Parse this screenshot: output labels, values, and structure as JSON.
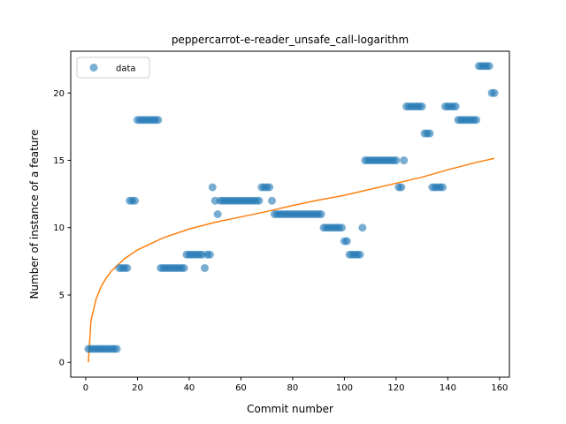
{
  "chart_data": {
    "type": "scatter",
    "title": "peppercarrot-e-reader_unsafe_call-logarithm",
    "xlabel": "Commit number",
    "ylabel": "Number of instance of a feature",
    "xlim": [
      -5.8,
      163.8
    ],
    "ylim": [
      -1.1,
      23.1
    ],
    "xticks": [
      0,
      20,
      40,
      60,
      80,
      100,
      120,
      140,
      160
    ],
    "yticks": [
      0,
      5,
      10,
      15,
      20
    ],
    "grid": false,
    "legend": {
      "placement": "top-left",
      "entries": [
        "data"
      ]
    },
    "colors": {
      "data": "#1f77b4",
      "fit": "#ff7f0e"
    },
    "series": [
      {
        "name": "data",
        "kind": "scatter",
        "x": [
          1,
          2,
          3,
          4,
          5,
          6,
          7,
          8,
          9,
          10,
          11,
          12,
          13,
          14,
          15,
          16,
          17,
          18,
          19,
          20,
          21,
          22,
          23,
          24,
          25,
          26,
          27,
          28,
          29,
          30,
          31,
          32,
          33,
          34,
          35,
          36,
          37,
          38,
          39,
          40,
          41,
          42,
          43,
          44,
          45,
          46,
          47,
          48,
          49,
          50,
          51,
          52,
          53,
          54,
          55,
          56,
          57,
          58,
          59,
          60,
          61,
          62,
          63,
          64,
          65,
          66,
          67,
          68,
          69,
          70,
          71,
          72,
          73,
          74,
          75,
          76,
          77,
          78,
          79,
          80,
          81,
          82,
          83,
          84,
          85,
          86,
          87,
          88,
          89,
          90,
          91,
          92,
          93,
          94,
          95,
          96,
          97,
          98,
          99,
          100,
          101,
          102,
          103,
          104,
          105,
          106,
          107,
          108,
          109,
          110,
          111,
          112,
          113,
          114,
          115,
          116,
          117,
          118,
          119,
          120,
          121,
          122,
          123,
          124,
          125,
          126,
          127,
          128,
          129,
          130,
          131,
          132,
          133,
          134,
          135,
          136,
          137,
          138,
          139,
          140,
          141,
          142,
          143,
          144,
          145,
          146,
          147,
          148,
          149,
          150,
          151,
          152,
          153,
          154,
          155,
          156,
          157,
          158
        ],
        "y": [
          1,
          1,
          1,
          1,
          1,
          1,
          1,
          1,
          1,
          1,
          1,
          1,
          7,
          7,
          7,
          7,
          12,
          12,
          12,
          18,
          18,
          18,
          18,
          18,
          18,
          18,
          18,
          18,
          7,
          7,
          7,
          7,
          7,
          7,
          7,
          7,
          7,
          7,
          8,
          8,
          8,
          8,
          8,
          8,
          8,
          7,
          8,
          8,
          13,
          12,
          11,
          12,
          12,
          12,
          12,
          12,
          12,
          12,
          12,
          12,
          12,
          12,
          12,
          12,
          12,
          12,
          12,
          13,
          13,
          13,
          13,
          12,
          11,
          11,
          11,
          11,
          11,
          11,
          11,
          11,
          11,
          11,
          11,
          11,
          11,
          11,
          11,
          11,
          11,
          11,
          11,
          10,
          10,
          10,
          10,
          10,
          10,
          10,
          10,
          9,
          9,
          8,
          8,
          8,
          8,
          8,
          10,
          15,
          15,
          15,
          15,
          15,
          15,
          15,
          15,
          15,
          15,
          15,
          15,
          15,
          13,
          13,
          15,
          19,
          19,
          19,
          19,
          19,
          19,
          19,
          17,
          17,
          17,
          13,
          13,
          13,
          13,
          13,
          19,
          19,
          19,
          19,
          19,
          18,
          18,
          18,
          18,
          18,
          18,
          18,
          18,
          22,
          22,
          22,
          22,
          22,
          20,
          20
        ]
      },
      {
        "name": "",
        "kind": "line",
        "model": "logarithm",
        "x": [
          1,
          2,
          4,
          6,
          8,
          10,
          15,
          20,
          30,
          40,
          50,
          60,
          70,
          80,
          90,
          100,
          110,
          120,
          130,
          140,
          150,
          158
        ],
        "y": [
          0.0,
          3.06,
          4.7,
          5.65,
          6.3,
          6.8,
          7.7,
          8.35,
          9.25,
          9.9,
          10.4,
          10.8,
          11.2,
          11.65,
          12.05,
          12.4,
          12.85,
          13.3,
          13.75,
          14.3,
          14.8,
          15.15
        ]
      }
    ]
  }
}
